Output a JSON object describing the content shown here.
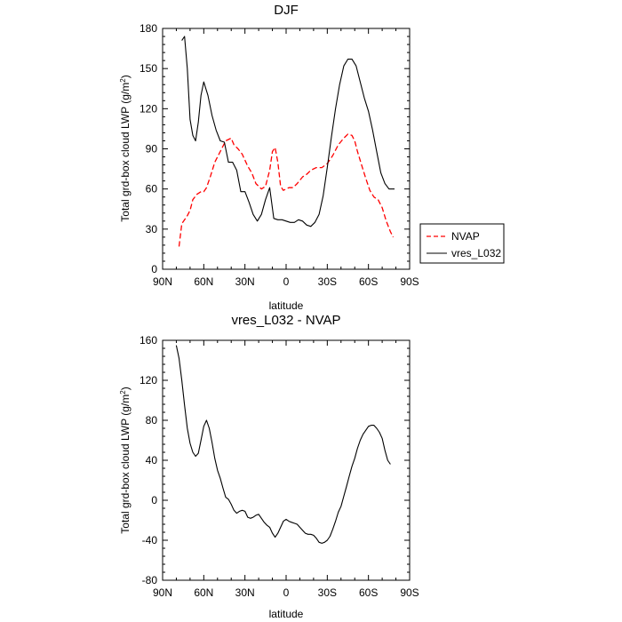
{
  "chart_data": [
    {
      "type": "line",
      "title": "DJF",
      "xlabel": "latitude",
      "ylabel": "Total grd-box cloud LWP (g/m",
      "ylabel_sup": "2",
      "ylabel_close": ")",
      "xlim": [
        90,
        -90
      ],
      "ylim": [
        0,
        180
      ],
      "yticks": [
        0,
        30,
        60,
        90,
        120,
        150,
        180
      ],
      "xticks": [
        90,
        60,
        30,
        0,
        -30,
        -60,
        -90
      ],
      "xticklabels": [
        "90N",
        "60N",
        "30N",
        "0",
        "30S",
        "60S",
        "90S"
      ],
      "legend": [
        "NVAP",
        "vres_L032"
      ],
      "series": [
        {
          "name": "NVAP",
          "color": "#ff0000",
          "dash": true,
          "x": [
            78,
            76,
            72,
            70,
            68,
            65,
            62,
            60,
            58,
            55,
            52,
            48,
            44,
            40,
            38,
            35,
            32,
            28,
            25,
            22,
            18,
            15,
            12,
            10,
            8,
            6,
            4,
            2,
            0,
            -2,
            -5,
            -8,
            -12,
            -15,
            -18,
            -22,
            -26,
            -30,
            -34,
            -38,
            -42,
            -45,
            -48,
            -50,
            -52,
            -55,
            -58,
            -61,
            -64,
            -67,
            -70,
            -73,
            -76,
            -78
          ],
          "values": [
            17,
            34,
            40,
            44,
            52,
            56,
            58,
            58,
            61,
            70,
            80,
            88,
            96,
            98,
            93,
            90,
            86,
            77,
            72,
            64,
            60,
            62,
            74,
            88,
            91,
            80,
            62,
            59,
            60,
            61,
            61,
            64,
            69,
            71,
            74,
            76,
            76,
            79,
            85,
            93,
            98,
            101,
            100,
            96,
            88,
            78,
            68,
            59,
            54,
            52,
            46,
            36,
            28,
            24
          ]
        },
        {
          "name": "vres_L032",
          "color": "#000000",
          "dash": false,
          "x": [
            76,
            74,
            72,
            70,
            68,
            66,
            64,
            62,
            60,
            57,
            54,
            51,
            48,
            45,
            42,
            39,
            36,
            33,
            30,
            27,
            24,
            21,
            18,
            15,
            12,
            9,
            6,
            3,
            0,
            -3,
            -6,
            -9,
            -12,
            -15,
            -18,
            -21,
            -24,
            -27,
            -30,
            -33,
            -36,
            -39,
            -42,
            -45,
            -48,
            -51,
            -54,
            -57,
            -60,
            -63,
            -66,
            -69,
            -72,
            -75,
            -77,
            -79
          ],
          "values": [
            171,
            174,
            150,
            112,
            100,
            96,
            110,
            130,
            140,
            130,
            115,
            104,
            96,
            95,
            80,
            80,
            74,
            58,
            58,
            50,
            41,
            36,
            41,
            52,
            61,
            38,
            37,
            37,
            36,
            35,
            35,
            37,
            36,
            33,
            32,
            35,
            41,
            55,
            76,
            99,
            120,
            138,
            152,
            157,
            157,
            152,
            140,
            128,
            118,
            104,
            88,
            72,
            64,
            60,
            60,
            60
          ]
        }
      ]
    },
    {
      "type": "line",
      "title": "vres_L032 - NVAP",
      "xlabel": "latitude",
      "ylabel": "Total grd-box cloud LWP (g/m",
      "ylabel_sup": "2",
      "ylabel_close": ")",
      "xlim": [
        90,
        -90
      ],
      "ylim": [
        -80,
        160
      ],
      "yticks": [
        -80,
        -40,
        0,
        40,
        80,
        120,
        160
      ],
      "xticks": [
        90,
        60,
        30,
        0,
        -30,
        -60,
        -90
      ],
      "xticklabels": [
        "90N",
        "60N",
        "30N",
        "0",
        "30S",
        "60S",
        "90S"
      ],
      "series": [
        {
          "name": "vres_L032 - NVAP",
          "color": "#000000",
          "dash": false,
          "x": [
            80,
            78,
            76,
            74,
            72,
            70,
            68,
            66,
            64,
            62,
            60,
            58,
            56,
            54,
            52,
            50,
            48,
            46,
            44,
            42,
            40,
            38,
            36,
            34,
            32,
            30,
            28,
            26,
            24,
            22,
            20,
            18,
            16,
            14,
            12,
            10,
            8,
            6,
            4,
            2,
            0,
            -2,
            -4,
            -6,
            -8,
            -10,
            -12,
            -14,
            -16,
            -18,
            -20,
            -22,
            -24,
            -26,
            -28,
            -30,
            -32,
            -34,
            -36,
            -38,
            -40,
            -42,
            -44,
            -46,
            -48,
            -50,
            -52,
            -54,
            -56,
            -58,
            -60,
            -62,
            -64,
            -66,
            -68,
            -70,
            -72,
            -74,
            -76
          ],
          "values": [
            155,
            142,
            120,
            95,
            72,
            57,
            48,
            44,
            47,
            60,
            74,
            80,
            72,
            58,
            42,
            30,
            22,
            12,
            3,
            1,
            -4,
            -10,
            -13,
            -11,
            -10,
            -11,
            -17,
            -18,
            -17,
            -15,
            -14,
            -18,
            -22,
            -25,
            -27,
            -33,
            -37,
            -33,
            -27,
            -21,
            -19,
            -21,
            -22,
            -23,
            -24,
            -27,
            -30,
            -33,
            -34,
            -34,
            -35,
            -38,
            -42,
            -43,
            -42,
            -40,
            -36,
            -29,
            -21,
            -12,
            -6,
            4,
            14,
            24,
            34,
            42,
            52,
            60,
            66,
            70,
            74,
            75,
            75,
            72,
            68,
            62,
            50,
            40,
            36
          ]
        }
      ]
    }
  ]
}
